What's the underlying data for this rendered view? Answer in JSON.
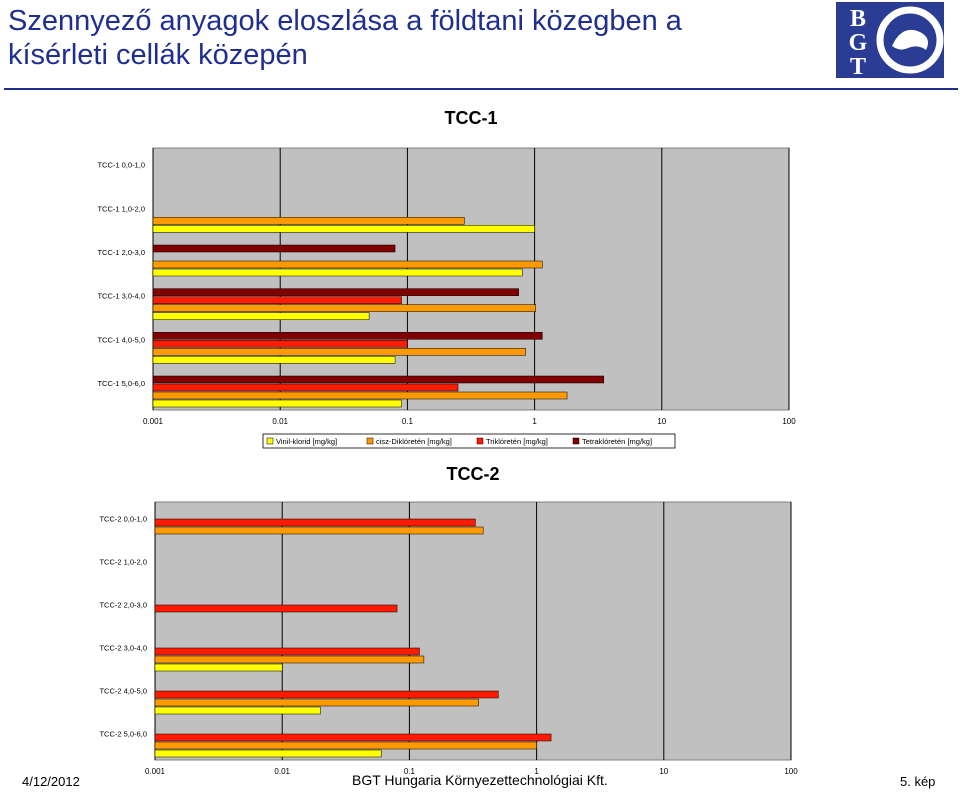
{
  "slide": {
    "title_line1": "Szennyező anyagok eloszlása a földtani közegben a",
    "title_line2": "kísérleti cellák közepén",
    "logo_letters": [
      "B",
      "G",
      "T"
    ],
    "footer_date": "4/12/2012",
    "footer_company": "BGT Hungaria Környezettechnológiai Kft.",
    "footer_page": "5. kép",
    "colors": {
      "title": "#1f2f8f",
      "plot_bg": "#c0c0c0",
      "logo_bg": "#2b3c95"
    }
  },
  "chart_data": [
    {
      "type": "bar",
      "orientation": "horizontal",
      "title": "TCC-1",
      "xscale": "log",
      "xlim": [
        0.001,
        100
      ],
      "xticks": [
        "0.001",
        "0.01",
        "0.1",
        "1",
        "10",
        "100"
      ],
      "grid": true,
      "legend_position": "bottom",
      "categories": [
        "TCC-1 0,0-1,0",
        "TCC-1 1,0-2,0",
        "TCC-1 2,0-3,0",
        "TCC-1 3,0-4,0",
        "TCC-1 4,0-5,0",
        "TCC-1 5,0-6,0"
      ],
      "series": [
        {
          "name": "Vinil-klorid [mg/kg]",
          "color": "#ffff00",
          "values": [
            null,
            1.0,
            0.8,
            0.05,
            0.08,
            0.09
          ]
        },
        {
          "name": "cisz-Diklóretén [mg/kg]",
          "color": "#ff9900",
          "values": [
            null,
            0.28,
            1.15,
            1.02,
            0.85,
            1.8
          ]
        },
        {
          "name": "Triklóretén [mg/kg]",
          "color": "#ff1a00",
          "values": [
            null,
            null,
            null,
            0.09,
            0.1,
            0.25
          ]
        },
        {
          "name": "Tetraklóretén [mg/kg]",
          "color": "#800000",
          "values": [
            null,
            null,
            0.08,
            0.75,
            1.15,
            3.5
          ]
        }
      ]
    },
    {
      "type": "bar",
      "orientation": "horizontal",
      "title": "TCC-2",
      "xscale": "log",
      "xlim": [
        0.001,
        100
      ],
      "xticks": [
        "0.001",
        "0.01",
        "0.1",
        "1",
        "10",
        "100"
      ],
      "grid": true,
      "categories": [
        "TCC-2 0,0-1,0",
        "TCC-2 1,0-2,0",
        "TCC-2 2,0-3,0",
        "TCC-2 3,0-4,0",
        "TCC-2 4,0-5,0",
        "TCC-2 5,0-6,0"
      ],
      "series": [
        {
          "name": "Vinil-klorid [mg/kg]",
          "color": "#ffff00",
          "values": [
            null,
            null,
            null,
            0.01,
            0.02,
            0.06
          ]
        },
        {
          "name": "cisz-Diklóretén [mg/kg]",
          "color": "#ff9900",
          "values": [
            0.38,
            null,
            null,
            0.13,
            0.35,
            1.0
          ]
        },
        {
          "name": "Triklóretén [mg/kg]",
          "color": "#ff1a00",
          "values": [
            0.33,
            null,
            0.08,
            0.12,
            0.5,
            1.3
          ]
        }
      ]
    }
  ]
}
